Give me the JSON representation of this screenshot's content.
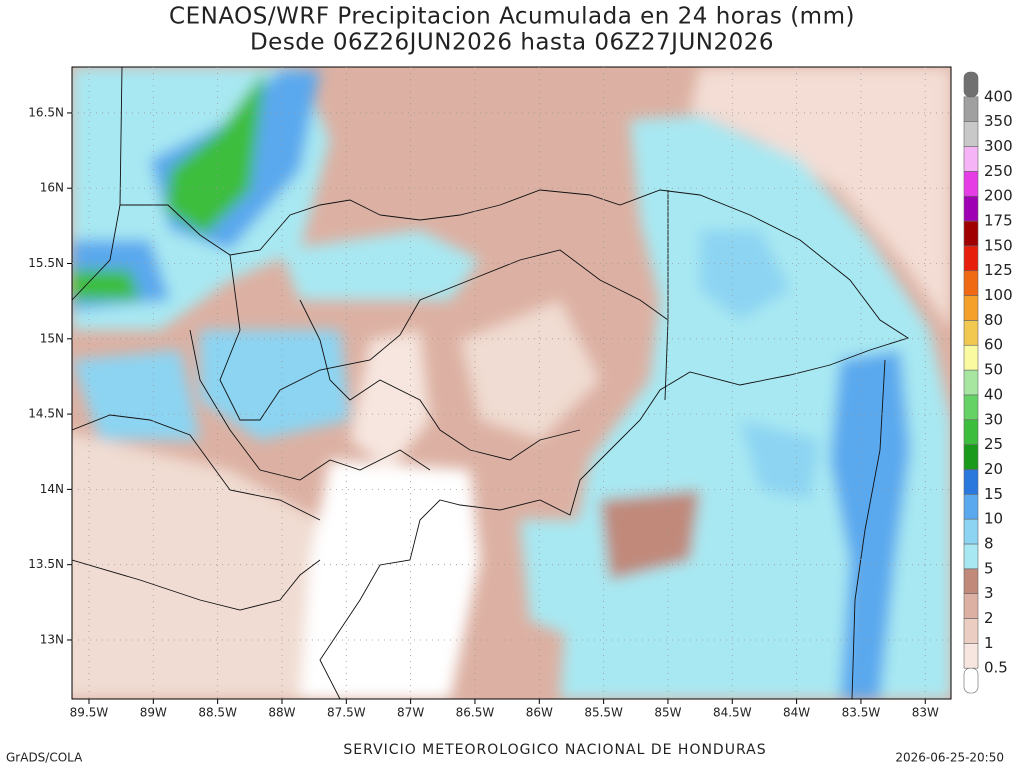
{
  "title": [
    "CENAOS/WRF Precipitacion Acumulada en 24 horas (mm)",
    "Desde 06Z26JUN2026 hasta 06Z27JUN2026"
  ],
  "map": {
    "lon_range": [
      -89.632,
      -82.8
    ],
    "lat_range": [
      12.608,
      16.805
    ],
    "lon_ticks": [
      {
        "value": -89.5,
        "label": "89.5W"
      },
      {
        "value": -89,
        "label": "89W"
      },
      {
        "value": -88.5,
        "label": "88.5W"
      },
      {
        "value": -88,
        "label": "88W"
      },
      {
        "value": -87.5,
        "label": "87.5W"
      },
      {
        "value": -87,
        "label": "87W"
      },
      {
        "value": -86.5,
        "label": "86.5W"
      },
      {
        "value": -86,
        "label": "86W"
      },
      {
        "value": -85.5,
        "label": "85.5W"
      },
      {
        "value": -85,
        "label": "85W"
      },
      {
        "value": -84.5,
        "label": "84.5W"
      },
      {
        "value": -84,
        "label": "84W"
      },
      {
        "value": -83.5,
        "label": "83.5W"
      },
      {
        "value": -83,
        "label": "83W"
      }
    ],
    "lat_ticks": [
      {
        "value": 13,
        "label": "13N"
      },
      {
        "value": 13.5,
        "label": "13.5N"
      },
      {
        "value": 14,
        "label": "14N"
      },
      {
        "value": 14.5,
        "label": "14.5N"
      },
      {
        "value": 15,
        "label": "15N"
      },
      {
        "value": 15.5,
        "label": "15.5N"
      },
      {
        "value": 16,
        "label": "16N"
      },
      {
        "value": 16.5,
        "label": "16.5N"
      }
    ]
  },
  "colorbar": {
    "levels": [
      0.5,
      1,
      2,
      3,
      5,
      8,
      10,
      15,
      20,
      25,
      30,
      40,
      50,
      60,
      80,
      100,
      125,
      150,
      175,
      200,
      250,
      300,
      350,
      400
    ],
    "colors": [
      "#ffffff",
      "#f6e6df",
      "#ebcdc2",
      "#dcb1a3",
      "#c0897a",
      "#a8e8f2",
      "#8cd4f2",
      "#5aa8ee",
      "#2a78de",
      "#1a9a1a",
      "#3cbe3c",
      "#64d264",
      "#a6e6a0",
      "#fafaa0",
      "#f2c850",
      "#f5a028",
      "#f06a14",
      "#e61e0a",
      "#a00000",
      "#a000b4",
      "#e63ce6",
      "#f5b4f5",
      "#c8c8c8",
      "#a0a0a0",
      "#707070"
    ]
  },
  "footer": {
    "left": "GrADS/COLA",
    "center": "SERVICIO METEOROLOGICO NACIONAL DE HONDURAS",
    "right": "2026-06-25-20:50"
  }
}
